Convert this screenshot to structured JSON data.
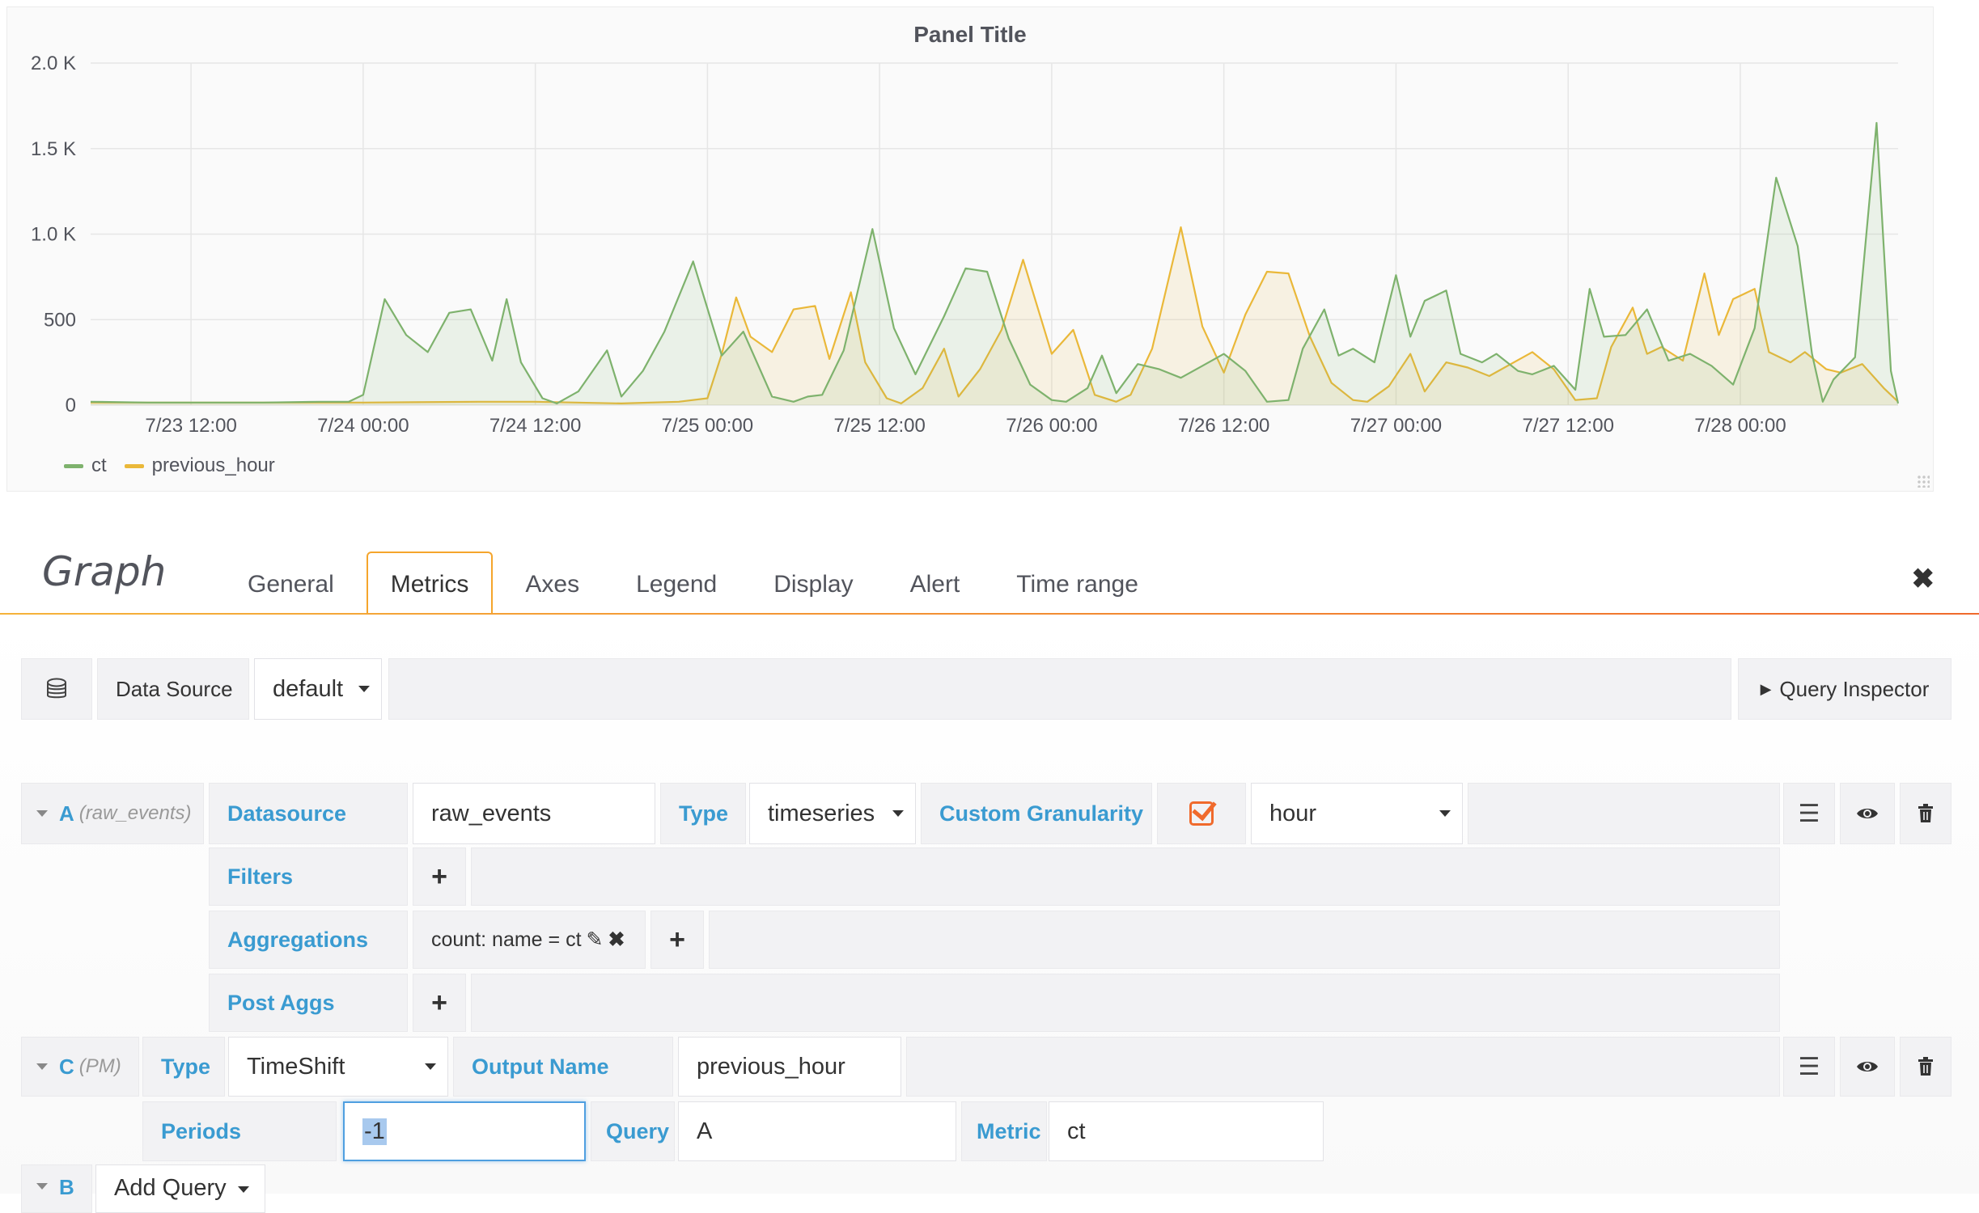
{
  "panel": {
    "title": "Panel Title",
    "legend": [
      {
        "name": "ct",
        "color": "#7eb26d"
      },
      {
        "name": "previous_hour",
        "color": "#eab839"
      }
    ]
  },
  "chart_data": {
    "type": "area",
    "title": "Panel Title",
    "ylim": [
      0,
      2000
    ],
    "y_ticks": [
      0,
      500,
      1000,
      1500,
      2000
    ],
    "y_tick_labels": [
      "0",
      "500",
      "1.0 K",
      "1.5 K",
      "2.0 K"
    ],
    "x_tick_labels": [
      "7/23 12:00",
      "7/24 00:00",
      "7/24 12:00",
      "7/25 00:00",
      "7/25 12:00",
      "7/26 00:00",
      "7/26 12:00",
      "7/27 00:00",
      "7/27 12:00",
      "7/28 00:00"
    ],
    "x_range": [
      "7/23 05:00",
      "7/28 11:00"
    ],
    "grid": true,
    "legend_position": "bottom-left",
    "x_unit": "hour",
    "series": [
      {
        "name": "ct",
        "color": "#7eb26d",
        "points": [
          [
            "7/23 05:00",
            20
          ],
          [
            "7/23 09:00",
            15
          ],
          [
            "7/23 13:00",
            15
          ],
          [
            "7/23 17:00",
            15
          ],
          [
            "7/23 21:00",
            20
          ],
          [
            "7/23 23:00",
            20
          ],
          [
            "7/24 00:00",
            60
          ],
          [
            "7/24 01:30",
            620
          ],
          [
            "7/24 03:00",
            410
          ],
          [
            "7/24 04:30",
            310
          ],
          [
            "7/24 06:00",
            540
          ],
          [
            "7/24 07:30",
            560
          ],
          [
            "7/24 09:00",
            260
          ],
          [
            "7/24 10:00",
            620
          ],
          [
            "7/24 11:00",
            250
          ],
          [
            "7/24 12:30",
            40
          ],
          [
            "7/24 13:30",
            10
          ],
          [
            "7/24 15:00",
            80
          ],
          [
            "7/24 17:00",
            320
          ],
          [
            "7/24 18:00",
            50
          ],
          [
            "7/24 19:30",
            200
          ],
          [
            "7/24 21:00",
            430
          ],
          [
            "7/24 23:00",
            840
          ],
          [
            "7/25 01:00",
            290
          ],
          [
            "7/25 02:30",
            430
          ],
          [
            "7/25 04:30",
            50
          ],
          [
            "7/25 06:00",
            20
          ],
          [
            "7/25 07:00",
            50
          ],
          [
            "7/25 08:00",
            60
          ],
          [
            "7/25 09:30",
            320
          ],
          [
            "7/25 11:30",
            1030
          ],
          [
            "7/25 13:00",
            450
          ],
          [
            "7/25 14:30",
            180
          ],
          [
            "7/25 16:30",
            520
          ],
          [
            "7/25 18:00",
            800
          ],
          [
            "7/25 19:30",
            780
          ],
          [
            "7/25 21:00",
            390
          ],
          [
            "7/25 22:30",
            120
          ],
          [
            "7/26 00:00",
            30
          ],
          [
            "7/26 01:00",
            20
          ],
          [
            "7/26 02:30",
            100
          ],
          [
            "7/26 03:30",
            290
          ],
          [
            "7/26 04:30",
            70
          ],
          [
            "7/26 06:00",
            240
          ],
          [
            "7/26 07:30",
            210
          ],
          [
            "7/26 09:00",
            160
          ],
          [
            "7/26 10:30",
            230
          ],
          [
            "7/26 12:00",
            300
          ],
          [
            "7/26 13:30",
            200
          ],
          [
            "7/26 15:00",
            20
          ],
          [
            "7/26 16:30",
            30
          ],
          [
            "7/26 17:30",
            330
          ],
          [
            "7/26 19:00",
            560
          ],
          [
            "7/26 20:00",
            290
          ],
          [
            "7/26 21:00",
            330
          ],
          [
            "7/26 22:30",
            250
          ],
          [
            "7/27 00:00",
            760
          ],
          [
            "7/27 01:00",
            400
          ],
          [
            "7/27 02:00",
            610
          ],
          [
            "7/27 03:30",
            670
          ],
          [
            "7/27 04:30",
            300
          ],
          [
            "7/27 06:00",
            250
          ],
          [
            "7/27 07:00",
            300
          ],
          [
            "7/27 08:30",
            200
          ],
          [
            "7/27 09:30",
            180
          ],
          [
            "7/27 11:00",
            230
          ],
          [
            "7/27 12:30",
            90
          ],
          [
            "7/27 13:30",
            680
          ],
          [
            "7/27 14:30",
            400
          ],
          [
            "7/27 16:00",
            410
          ],
          [
            "7/27 17:30",
            560
          ],
          [
            "7/27 19:00",
            260
          ],
          [
            "7/27 20:30",
            300
          ],
          [
            "7/27 22:00",
            230
          ],
          [
            "7/27 23:30",
            120
          ],
          [
            "7/28 01:00",
            450
          ],
          [
            "7/28 02:30",
            1330
          ],
          [
            "7/28 04:00",
            930
          ],
          [
            "7/28 05:00",
            300
          ],
          [
            "7/28 05:45",
            20
          ],
          [
            "7/28 06:30",
            150
          ],
          [
            "7/28 08:00",
            280
          ],
          [
            "7/28 09:30",
            1650
          ],
          [
            "7/28 10:30",
            200
          ],
          [
            "7/28 11:00",
            10
          ]
        ]
      },
      {
        "name": "previous_hour",
        "color": "#eab839",
        "points": [
          [
            "7/23 05:00",
            15
          ],
          [
            "7/24 00:00",
            15
          ],
          [
            "7/24 08:00",
            20
          ],
          [
            "7/24 12:00",
            20
          ],
          [
            "7/24 18:00",
            10
          ],
          [
            "7/24 22:00",
            20
          ],
          [
            "7/25 00:00",
            40
          ],
          [
            "7/25 01:00",
            300
          ],
          [
            "7/25 02:00",
            630
          ],
          [
            "7/25 03:00",
            400
          ],
          [
            "7/25 04:30",
            310
          ],
          [
            "7/25 06:00",
            560
          ],
          [
            "7/25 07:30",
            580
          ],
          [
            "7/25 08:30",
            270
          ],
          [
            "7/25 10:00",
            660
          ],
          [
            "7/25 11:00",
            250
          ],
          [
            "7/25 12:30",
            40
          ],
          [
            "7/25 13:30",
            10
          ],
          [
            "7/25 15:00",
            100
          ],
          [
            "7/25 16:30",
            330
          ],
          [
            "7/25 17:30",
            50
          ],
          [
            "7/25 19:00",
            210
          ],
          [
            "7/25 20:30",
            440
          ],
          [
            "7/25 22:00",
            850
          ],
          [
            "7/26 00:00",
            300
          ],
          [
            "7/26 01:30",
            440
          ],
          [
            "7/26 03:00",
            60
          ],
          [
            "7/26 04:30",
            20
          ],
          [
            "7/26 05:30",
            60
          ],
          [
            "7/26 07:00",
            330
          ],
          [
            "7/26 09:00",
            1040
          ],
          [
            "7/26 10:30",
            460
          ],
          [
            "7/26 12:00",
            190
          ],
          [
            "7/26 13:30",
            530
          ],
          [
            "7/26 15:00",
            780
          ],
          [
            "7/26 16:30",
            770
          ],
          [
            "7/26 18:00",
            400
          ],
          [
            "7/26 19:30",
            130
          ],
          [
            "7/26 21:00",
            30
          ],
          [
            "7/26 22:00",
            20
          ],
          [
            "7/26 23:30",
            110
          ],
          [
            "7/27 01:00",
            300
          ],
          [
            "7/27 02:00",
            80
          ],
          [
            "7/27 03:30",
            250
          ],
          [
            "7/27 05:00",
            220
          ],
          [
            "7/27 06:30",
            170
          ],
          [
            "7/27 08:00",
            240
          ],
          [
            "7/27 09:30",
            310
          ],
          [
            "7/27 11:00",
            210
          ],
          [
            "7/27 12:30",
            30
          ],
          [
            "7/27 14:00",
            40
          ],
          [
            "7/27 15:00",
            340
          ],
          [
            "7/27 16:30",
            570
          ],
          [
            "7/27 17:30",
            300
          ],
          [
            "7/27 18:30",
            340
          ],
          [
            "7/27 20:00",
            260
          ],
          [
            "7/27 21:30",
            770
          ],
          [
            "7/27 22:30",
            410
          ],
          [
            "7/27 23:30",
            620
          ],
          [
            "7/28 01:00",
            680
          ],
          [
            "7/28 02:00",
            310
          ],
          [
            "7/28 03:30",
            250
          ],
          [
            "7/28 04:30",
            310
          ],
          [
            "7/28 06:00",
            210
          ],
          [
            "7/28 07:00",
            190
          ],
          [
            "7/28 08:30",
            240
          ],
          [
            "7/28 10:00",
            100
          ],
          [
            "7/28 11:00",
            20
          ]
        ]
      }
    ]
  },
  "editor": {
    "title": "Graph",
    "tabs": [
      "General",
      "Metrics",
      "Axes",
      "Legend",
      "Display",
      "Alert",
      "Time range"
    ],
    "active_tab": "Metrics",
    "datasource_label": "Data Source",
    "datasource_value": "default",
    "query_inspector": "Query Inspector"
  },
  "query_a": {
    "ref": "A",
    "ref_sub": "(raw_events)",
    "datasource_label": "Datasource",
    "datasource_value": "raw_events",
    "type_label": "Type",
    "type_value": "timeseries",
    "granularity_label": "Custom Granularity",
    "granularity_value": "hour",
    "filters_label": "Filters",
    "aggregations_label": "Aggregations",
    "aggregation_item": "count: name = ct",
    "post_aggs_label": "Post Aggs"
  },
  "query_c": {
    "ref": "C",
    "ref_sub": "(PM)",
    "type_label": "Type",
    "type_value": "TimeShift",
    "output_name_label": "Output Name",
    "output_name_value": "previous_hour",
    "periods_label": "Periods",
    "periods_value": "-1",
    "query_label": "Query",
    "query_value": "A",
    "metric_label": "Metric",
    "metric_value": "ct"
  },
  "query_b": {
    "ref": "B",
    "add_query": "Add Query"
  },
  "icons": {
    "database": "database-icon",
    "menu": "hamburger-icon",
    "eye": "eye-icon",
    "trash": "trash-icon",
    "close": "close-icon",
    "edit": "pencil-icon",
    "remove": "x-icon",
    "plus": "plus-icon"
  }
}
